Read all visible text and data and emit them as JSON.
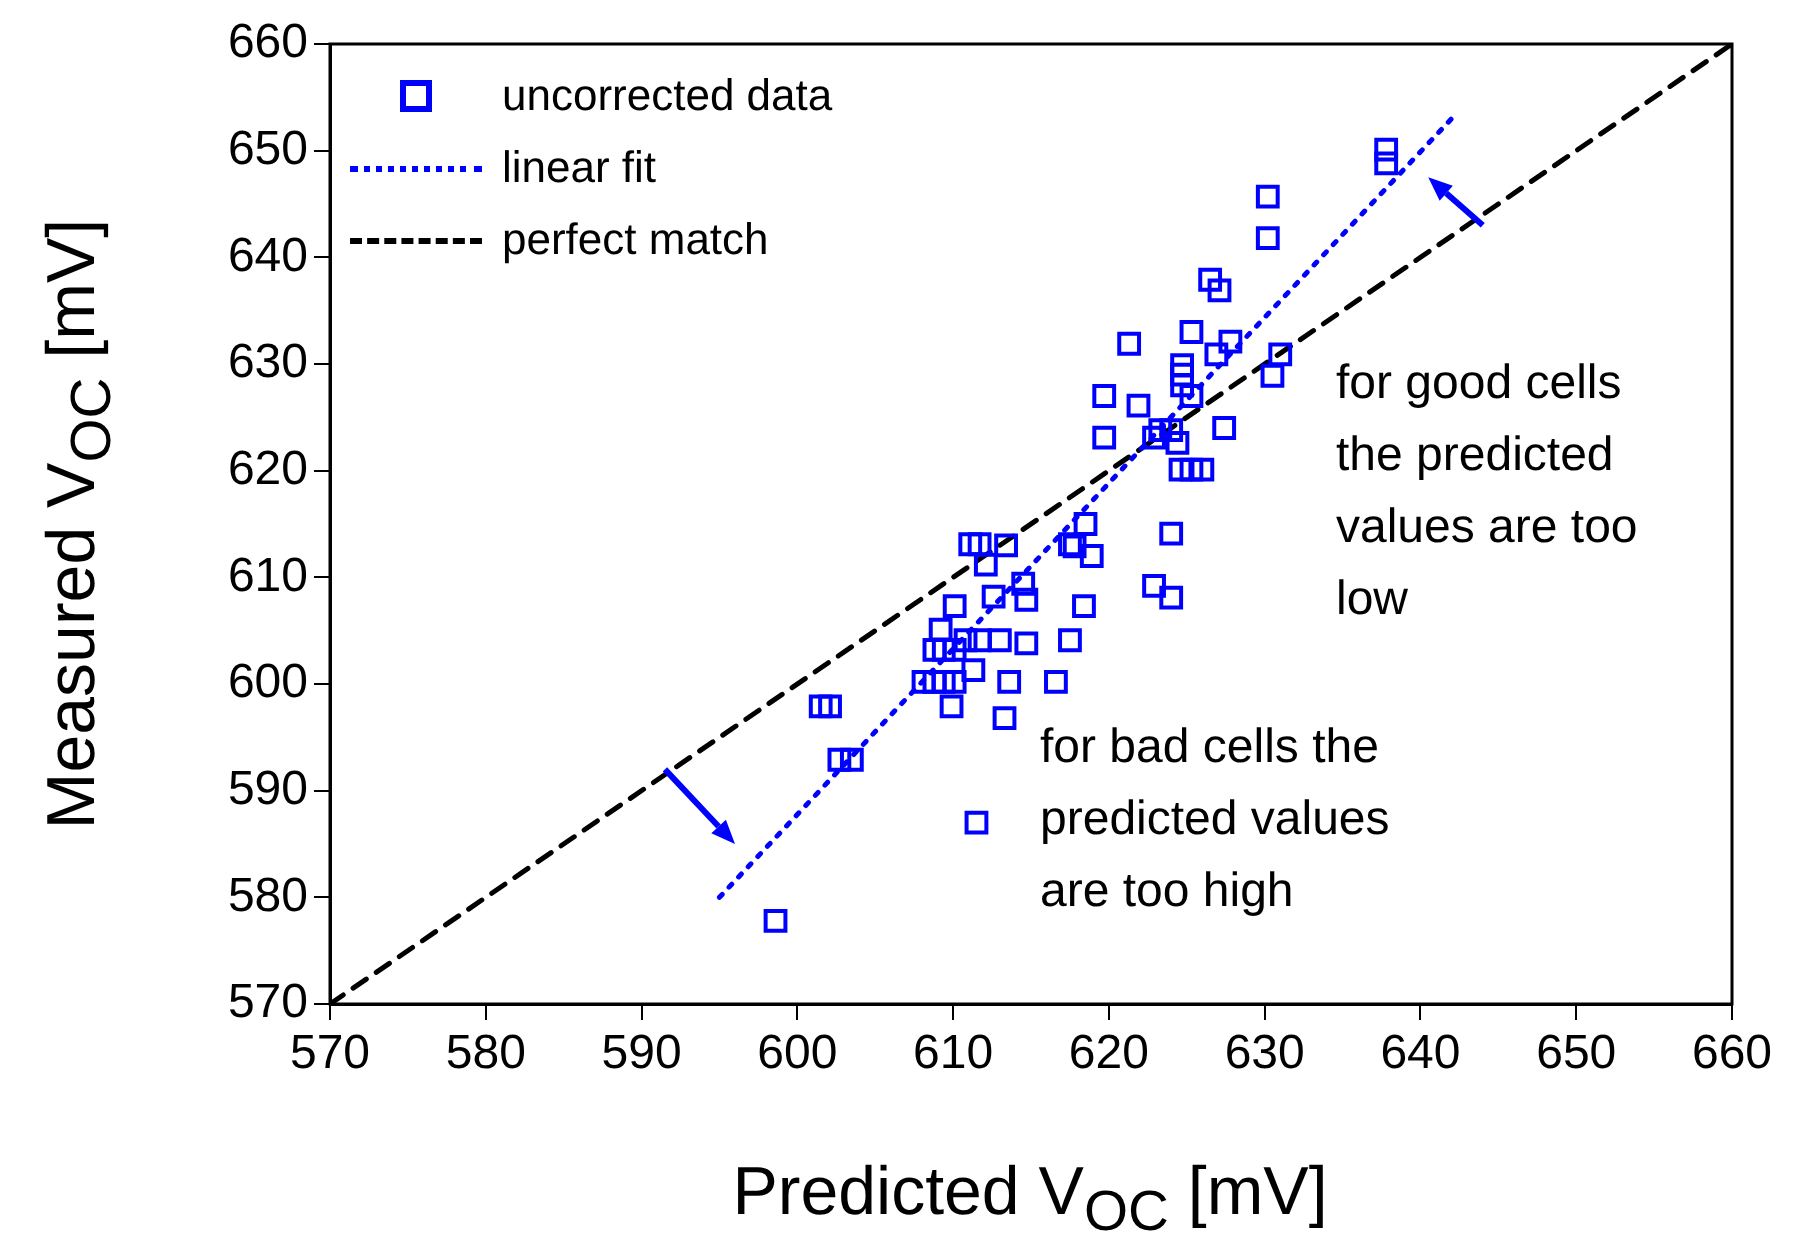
{
  "chart_data": {
    "type": "scatter",
    "xlabel": "Predicted V$_{OC}$ [mV]",
    "ylabel": "Measured V$_{OC}$ [mV]",
    "xlim": [
      570,
      660
    ],
    "ylim": [
      570,
      660
    ],
    "xticks": [
      570,
      580,
      590,
      600,
      610,
      620,
      630,
      640,
      650,
      660
    ],
    "yticks": [
      570,
      580,
      590,
      600,
      610,
      620,
      630,
      640,
      650,
      660
    ],
    "legend": "top left",
    "series": [
      {
        "name": "uncorrected data",
        "type": "scatter",
        "marker": "square",
        "color": "#0000ff",
        "x": [
          598.6,
          601.5,
          602.1,
          602.7,
          603.5,
          611.5,
          609.9,
          613.3,
          608.1,
          608.8,
          609.4,
          610.1,
          613.6,
          616.6,
          608.8,
          609.4,
          610.1,
          610.8,
          611.7,
          613.0,
          614.7,
          609.2,
          617.5,
          611.3,
          610.1,
          612.6,
          614.5,
          614.7,
          618.4,
          611.1,
          611.7,
          613.4,
          612.1,
          617.5,
          618.5,
          626.5,
          627.1,
          625.3,
          627.8,
          626.9,
          621.3,
          631.0,
          630.5,
          624.7,
          624.7,
          624.7,
          625.3,
          619.7,
          621.9,
          623.3,
          624.0,
          622.9,
          624.4,
          627.4,
          619.7,
          624.6,
          625.3,
          626.0,
          617.8,
          618.9,
          624.0,
          622.9,
          624.0,
          637.8,
          637.8,
          630.2,
          630.2
        ],
        "values": [
          577.8,
          597.9,
          597.9,
          592.9,
          592.9,
          587.0,
          597.9,
          596.8,
          600.2,
          600.2,
          600.2,
          600.2,
          600.2,
          600.2,
          603.2,
          603.2,
          603.2,
          604.1,
          604.1,
          604.1,
          603.8,
          605.1,
          604.1,
          601.3,
          607.3,
          608.2,
          609.4,
          607.9,
          607.3,
          613.1,
          613.1,
          613.0,
          611.2,
          613.1,
          615.0,
          637.9,
          636.9,
          633.0,
          632.1,
          630.9,
          631.9,
          630.9,
          628.9,
          629.9,
          629.0,
          628.0,
          627.0,
          627.0,
          626.1,
          623.8,
          623.8,
          623.1,
          622.6,
          624.0,
          623.1,
          620.1,
          620.1,
          620.1,
          612.9,
          612.0,
          614.1,
          609.2,
          608.1,
          650.1,
          648.8,
          645.7,
          641.8
        ]
      },
      {
        "name": "linear fit",
        "type": "line",
        "marker": "none",
        "line_style": "dotted",
        "color": "#0000ff",
        "x": [
          595,
          642
        ],
        "values": [
          580,
          653
        ]
      },
      {
        "name": "perfect match",
        "type": "line",
        "marker": "none",
        "line_style": "dashed",
        "color": "#000000",
        "x": [
          570,
          660
        ],
        "values": [
          570,
          660
        ]
      }
    ],
    "annotations": [
      "for good cells the predicted values are too low",
      "for bad cells the predicted values are too high"
    ]
  }
}
